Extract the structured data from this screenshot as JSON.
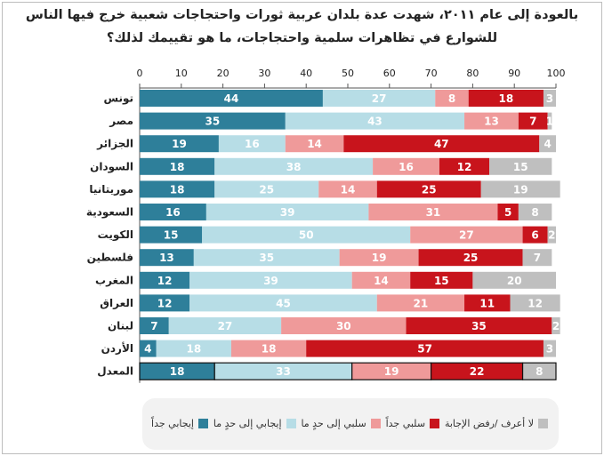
{
  "chart_data": {
    "type": "bar",
    "orientation": "horizontal",
    "stacked": true,
    "title": "بالعودة إلى عام ٢٠١١، شهدت عدة بلدان عربية ثورات واحتجاجات شعبية خرج فيها الناس للشوارع في تظاهرات سلمية واحتجاجات، ما هو تقييمك لذلك؟",
    "xlim": [
      0,
      100
    ],
    "x_ticks": [
      0,
      10,
      20,
      30,
      40,
      50,
      60,
      70,
      80,
      90,
      100
    ],
    "grid": false,
    "legend_position": "bottom",
    "categories": [
      "تونس",
      "مصر",
      "الجزائر",
      "السودان",
      "موريتانيا",
      "السعودية",
      "الكويت",
      "فلسطين",
      "المغرب",
      "العراق",
      "لبنان",
      "الأردن",
      "المعدل"
    ],
    "series": [
      {
        "name": "إيجابي جداً",
        "color": "#2e7f9a",
        "values": [
          44,
          35,
          19,
          18,
          18,
          16,
          15,
          13,
          12,
          12,
          7,
          4,
          18
        ]
      },
      {
        "name": "إيجابي إلى حدٍ ما",
        "color": "#b7dde6",
        "values": [
          27,
          43,
          16,
          38,
          25,
          39,
          50,
          35,
          39,
          45,
          27,
          18,
          33
        ]
      },
      {
        "name": "سلبي إلى حدٍ ما",
        "color": "#ef9a9a",
        "values": [
          8,
          13,
          14,
          16,
          14,
          31,
          27,
          19,
          14,
          21,
          30,
          18,
          19
        ]
      },
      {
        "name": "سلبي جداً",
        "color": "#c8141c",
        "values": [
          18,
          7,
          47,
          12,
          25,
          5,
          6,
          25,
          15,
          11,
          35,
          57,
          22
        ]
      },
      {
        "name": "لا أعرف /رفض الإجابة",
        "color": "#bfbfbf",
        "values": [
          3,
          1,
          4,
          15,
          19,
          8,
          2,
          7,
          20,
          12,
          2,
          3,
          8
        ]
      }
    ]
  }
}
